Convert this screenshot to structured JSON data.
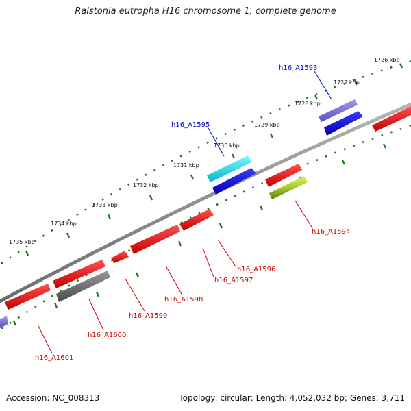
{
  "title": "Ralstonia eutropha H16 chromosome 1, complete genome",
  "footer": {
    "accession": "Accession: NC_008313",
    "stats": "Topology: circular; Length: 4,052,032 bp; Genes: 3,711"
  },
  "colors": {
    "backbone": "#8c8c8c",
    "tick": "#1a7a1a",
    "label_forward": "#0000cc",
    "label_reverse": "#cc0000"
  },
  "ticks": [
    {
      "label": "1726 kbp"
    },
    {
      "label": "1727 kbp"
    },
    {
      "label": "1728 kbp"
    },
    {
      "label": "1729 kbp"
    },
    {
      "label": "1730 kbp"
    },
    {
      "label": "1731 kbp"
    },
    {
      "label": "1732 kbp"
    },
    {
      "label": "1733 kbp"
    },
    {
      "label": "1734 kbp"
    },
    {
      "label": "1735 kbp"
    }
  ],
  "genes": [
    {
      "name": "h16_A1593",
      "strand": "forward",
      "color": "#3333dd"
    },
    {
      "name": "h16_A1595",
      "strand": "forward",
      "color": "#00cfdc"
    },
    {
      "name": "h16_A1594",
      "strand": "reverse",
      "color": "#8fc23a"
    },
    {
      "name": "h16_A1596",
      "strand": "reverse",
      "color": "#e01010"
    },
    {
      "name": "h16_A1597",
      "strand": "reverse",
      "color": "#e01010"
    },
    {
      "name": "h16_A1598",
      "strand": "reverse",
      "color": "#e01010"
    },
    {
      "name": "h16_A1599",
      "strand": "reverse",
      "color": "#e01010"
    },
    {
      "name": "h16_A1600",
      "strand": "reverse",
      "color": "#666666"
    },
    {
      "name": "h16_A1601",
      "strand": "reverse",
      "color": "#e01010"
    }
  ]
}
